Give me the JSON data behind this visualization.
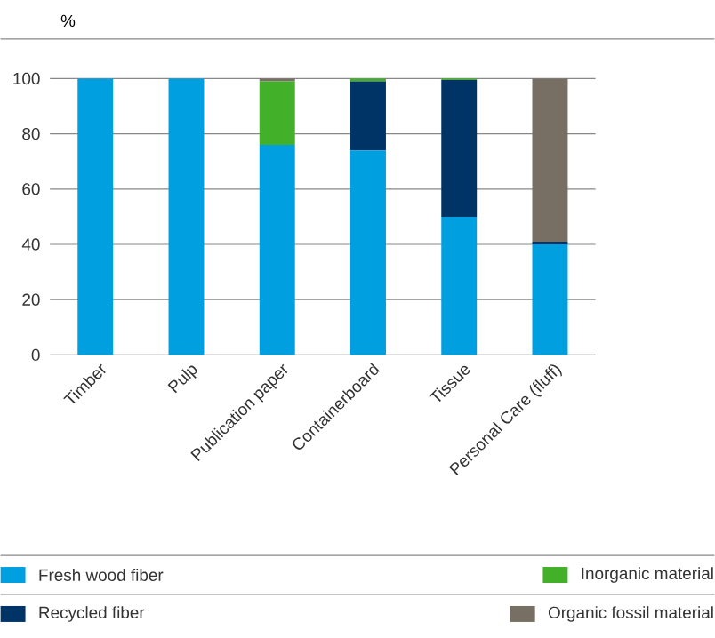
{
  "chart_data": {
    "type": "bar",
    "stacked": true,
    "ylabel": "%",
    "categories": [
      "Timber",
      "Pulp",
      "Publication paper",
      "Containerboard",
      "Tissue",
      "Personal Care (fluff)"
    ],
    "series": [
      {
        "name": "Fresh wood fiber",
        "color": "#009fdf",
        "values": [
          100,
          100,
          76,
          74,
          50,
          40
        ]
      },
      {
        "name": "Recycled fiber",
        "color": "#003366",
        "values": [
          0,
          0,
          0,
          25,
          49.5,
          1
        ]
      },
      {
        "name": "Inorganic material",
        "color": "#43b02a",
        "values": [
          0,
          0,
          23,
          1,
          0.5,
          0
        ]
      },
      {
        "name": "Organic fossil material",
        "color": "#776e64",
        "values": [
          0,
          0,
          1,
          0,
          0,
          59
        ]
      }
    ],
    "ylim": [
      0,
      100
    ],
    "yticks": [
      0,
      20,
      40,
      60,
      80,
      100
    ],
    "grid": "y",
    "legend": "bottom"
  }
}
